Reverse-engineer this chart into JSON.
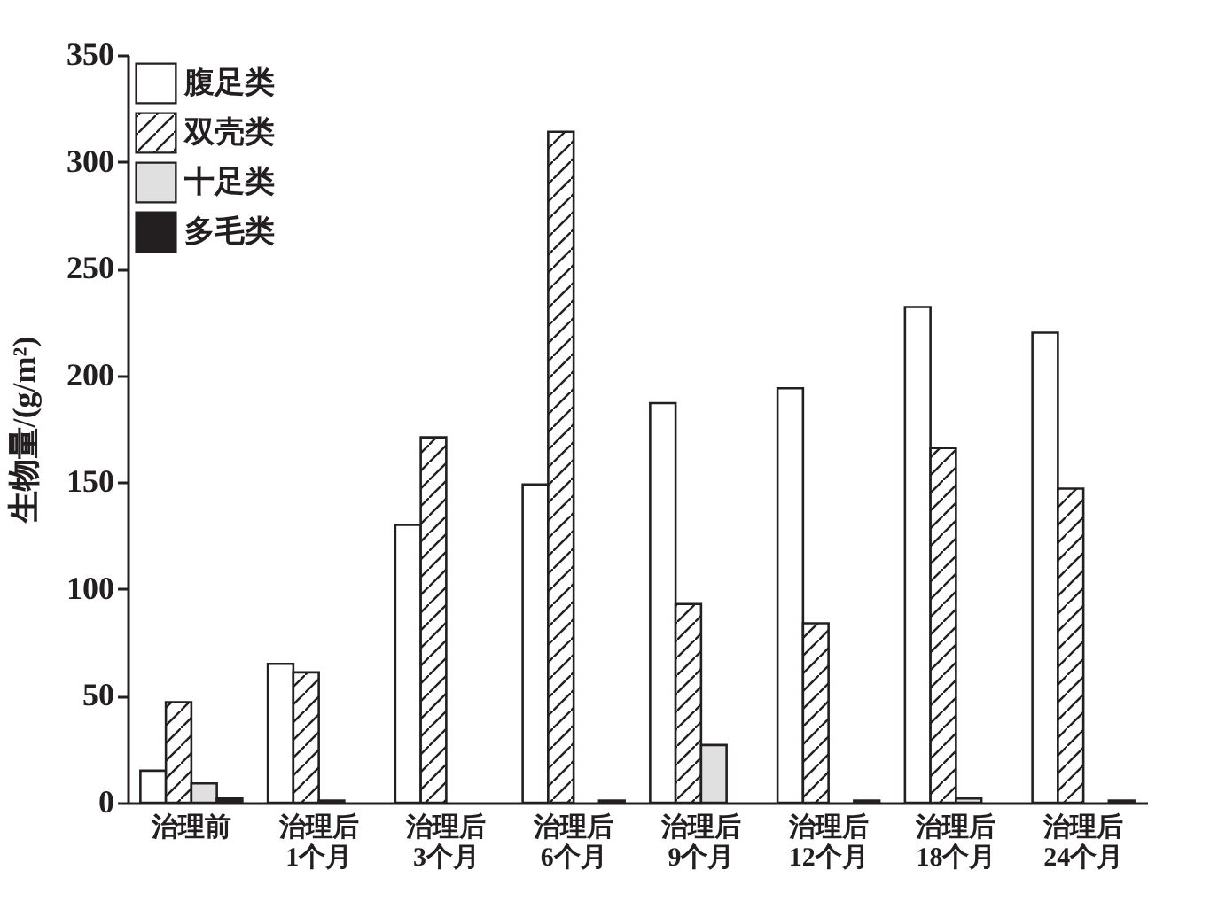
{
  "chart_data": {
    "type": "bar",
    "ylabel": "生物量/(g/m²)",
    "categories": [
      "治理前",
      "治理后\n1个月",
      "治理后\n3个月",
      "治理后\n6个月",
      "治理后\n9个月",
      "治理后\n12个月",
      "治理后\n18个月",
      "治理后\n24个月"
    ],
    "series": [
      {
        "name": "腹足类",
        "color": "#ffffff",
        "values": [
          15,
          65,
          130,
          149,
          187,
          194,
          232,
          220
        ]
      },
      {
        "name": "双壳类",
        "color": "#231f20",
        "values": [
          47,
          61,
          171,
          314,
          93,
          84,
          166,
          147
        ]
      },
      {
        "name": "十足类",
        "color": "#e0e0e0",
        "values": [
          9,
          1,
          null,
          null,
          27,
          null,
          2,
          null
        ]
      },
      {
        "name": "多毛类",
        "color": "#231f20",
        "values": [
          2,
          null,
          null,
          1,
          null,
          1,
          null,
          1
        ]
      }
    ],
    "ylim": [
      0,
      350
    ],
    "yticks": [
      0,
      50,
      100,
      150,
      200,
      250,
      300,
      350
    ],
    "grid": false,
    "legend": "top left"
  }
}
